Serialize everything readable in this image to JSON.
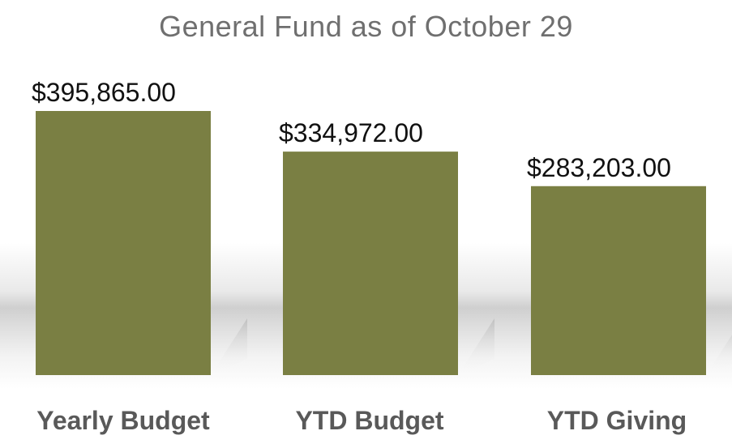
{
  "chart_data": {
    "type": "bar",
    "title": "General Fund as of October 29",
    "categories": [
      "Yearly Budget",
      "YTD Budget",
      "YTD Giving"
    ],
    "values": [
      395865,
      334972,
      283203
    ],
    "data_labels": [
      "$395,865.00",
      "$334,972.00",
      "$283,203.00"
    ],
    "xlabel": "",
    "ylabel": "",
    "ylim": [
      0,
      395865
    ],
    "grid": false,
    "legend": "none",
    "bar_color": "#7a7f43"
  }
}
